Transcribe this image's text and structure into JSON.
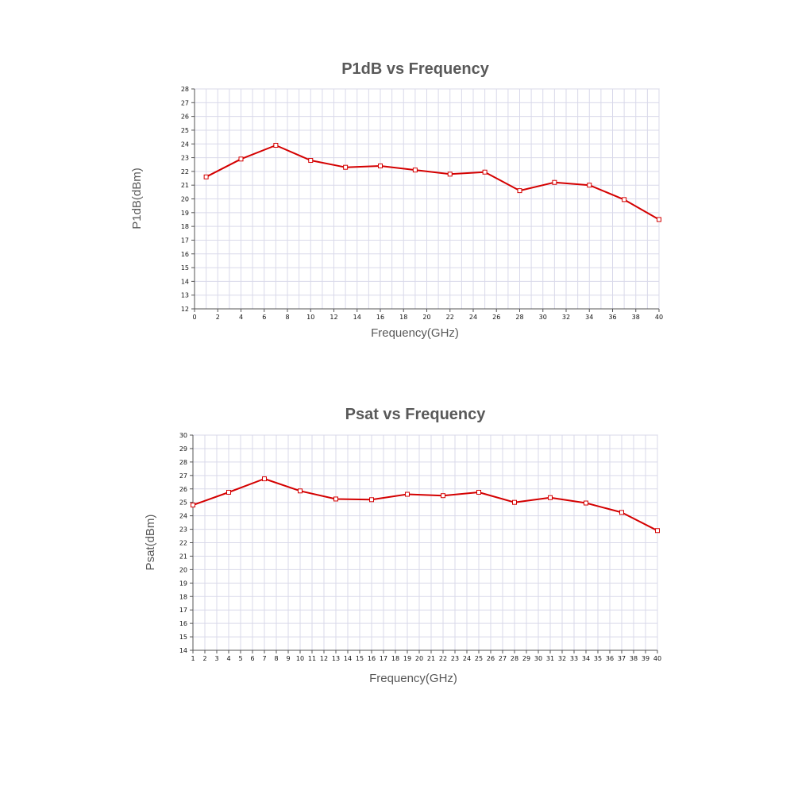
{
  "chart_data": [
    {
      "type": "line",
      "title": "P1dB vs Frequency",
      "xlabel": "Frequency(GHz)",
      "ylabel": "P1dB(dBm)",
      "xlim": [
        0,
        40
      ],
      "ylim": [
        12,
        28
      ],
      "xticks": [
        0,
        2,
        4,
        6,
        8,
        10,
        12,
        14,
        16,
        18,
        20,
        22,
        24,
        26,
        28,
        30,
        32,
        34,
        36,
        38,
        40
      ],
      "yticks": [
        12,
        13,
        14,
        15,
        16,
        17,
        18,
        19,
        20,
        21,
        22,
        23,
        24,
        25,
        26,
        27,
        28
      ],
      "grid": true,
      "color": "#d40000",
      "series": [
        {
          "x": [
            1,
            4,
            7,
            10,
            13,
            16,
            19,
            22,
            25,
            28,
            31,
            34,
            37,
            40
          ],
          "values": [
            21.6,
            22.9,
            23.9,
            22.8,
            22.3,
            22.4,
            22.1,
            21.8,
            21.95,
            20.6,
            21.2,
            21.0,
            19.95,
            18.5
          ]
        }
      ]
    },
    {
      "type": "line",
      "title": "Psat vs Frequency",
      "xlabel": "Frequency(GHz)",
      "ylabel": "Psat(dBm)",
      "xlim": [
        1,
        40
      ],
      "ylim": [
        14,
        30
      ],
      "xticks": [
        1,
        2,
        3,
        4,
        5,
        6,
        7,
        8,
        9,
        10,
        11,
        12,
        13,
        14,
        15,
        16,
        17,
        18,
        19,
        20,
        21,
        22,
        23,
        24,
        25,
        26,
        27,
        28,
        29,
        30,
        31,
        32,
        33,
        34,
        35,
        36,
        37,
        38,
        39,
        40
      ],
      "yticks": [
        14,
        15,
        16,
        17,
        18,
        19,
        20,
        21,
        22,
        23,
        24,
        25,
        26,
        27,
        28,
        29,
        30
      ],
      "grid": true,
      "color": "#d40000",
      "series": [
        {
          "x": [
            1,
            4,
            7,
            10,
            13,
            16,
            19,
            22,
            25,
            28,
            31,
            34,
            37,
            40
          ],
          "values": [
            24.8,
            25.75,
            26.75,
            25.85,
            25.25,
            25.2,
            25.6,
            25.5,
            25.75,
            25.0,
            25.35,
            24.95,
            24.25,
            22.9
          ]
        }
      ]
    }
  ]
}
